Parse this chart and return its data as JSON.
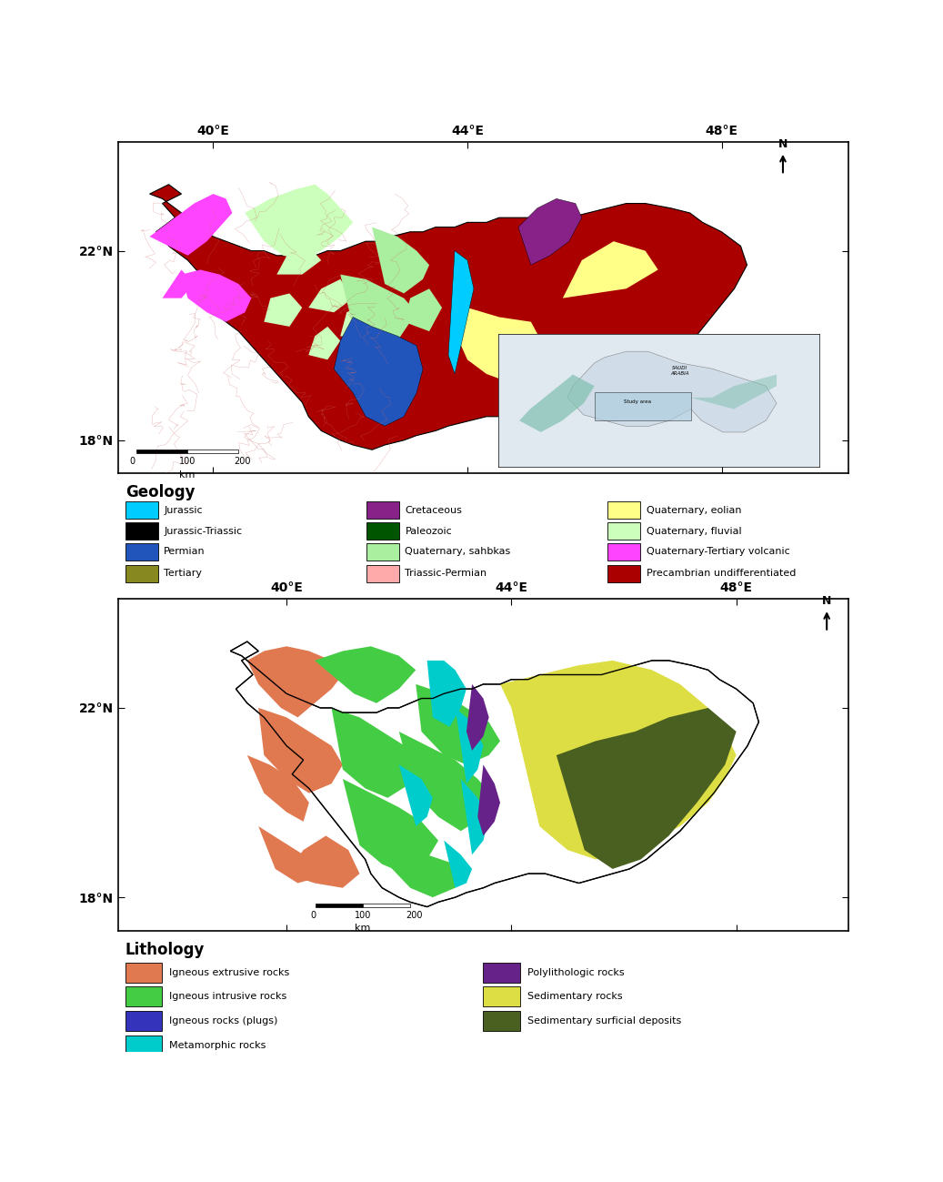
{
  "geology_legend": [
    {
      "label": "Jurassic",
      "color": "#00CCFF"
    },
    {
      "label": "Jurassic-Triassic",
      "color": "#000000"
    },
    {
      "label": "Permian",
      "color": "#2255BB"
    },
    {
      "label": "Tertiary",
      "color": "#888820"
    },
    {
      "label": "Cretaceous",
      "color": "#882288"
    },
    {
      "label": "Paleozoic",
      "color": "#005500"
    },
    {
      "label": "Quaternary, sahbkas",
      "color": "#AAEEA0"
    },
    {
      "label": "Triassic-Permian",
      "color": "#FFAAAA"
    },
    {
      "label": "Quaternary, eolian",
      "color": "#FFFF88"
    },
    {
      "label": "Quaternary, fluvial",
      "color": "#CCFFBB"
    },
    {
      "label": "Quaternary-Tertiary volcanic",
      "color": "#FF44FF"
    },
    {
      "label": "Precambrian undifferentiated",
      "color": "#AA0000"
    }
  ],
  "lithology_legend": [
    {
      "label": "Igneous extrusive rocks",
      "color": "#E07850"
    },
    {
      "label": "Igneous intrusive rocks",
      "color": "#44CC44"
    },
    {
      "label": "Igneous rocks (plugs)",
      "color": "#3333BB"
    },
    {
      "label": "Metamorphic rocks",
      "color": "#00CCCC"
    },
    {
      "label": "Polylithologic rocks",
      "color": "#662288"
    },
    {
      "label": "Sedimentary rocks",
      "color": "#DDDD44"
    },
    {
      "label": "Sedimentary surficial deposits",
      "color": "#4A6020"
    }
  ],
  "map1_xticks": [
    "40°E",
    "44°E",
    "48°E"
  ],
  "map1_yticks": [
    "18°N",
    "22°N"
  ],
  "map2_xticks": [
    "40°E",
    "44°E",
    "48°E"
  ],
  "map2_yticks": [
    "18°N",
    "22°N"
  ],
  "geology_title": "Geology",
  "lithology_title": "Lithology",
  "fig_width": 10.37,
  "fig_height": 12.99,
  "bg_color": "#FFFFFF"
}
